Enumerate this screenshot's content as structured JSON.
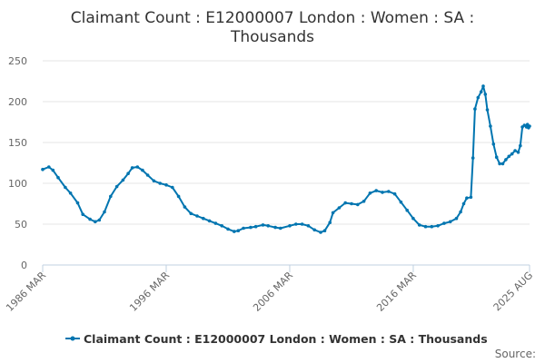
{
  "chart_data": {
    "type": "line",
    "title": "Claimant Count : E12000007 London : Women : SA :",
    "subtitle": "Thousands",
    "xlabel": "",
    "ylabel": "",
    "ylim": [
      0,
      250
    ],
    "yticks": [
      0,
      50,
      100,
      150,
      200,
      250
    ],
    "xrange": [
      "1986-03",
      "2025-08"
    ],
    "xticks": [
      {
        "date": "1986-03",
        "label": "1986 MAR"
      },
      {
        "date": "1996-03",
        "label": "1996 MAR"
      },
      {
        "date": "2006-03",
        "label": "2006 MAR"
      },
      {
        "date": "2016-03",
        "label": "2016 MAR"
      },
      {
        "date": "2025-08",
        "label": "2025 AUG"
      }
    ],
    "grid": true,
    "legend_position": "bottom",
    "series": [
      {
        "name": "Claimant Count : E12000007 London : Women : SA : Thousands",
        "color": "#0075b0",
        "marker": "circle",
        "points": [
          [
            "1986-03",
            117
          ],
          [
            "1986-09",
            120
          ],
          [
            "1987-01",
            116
          ],
          [
            "1987-06",
            107
          ],
          [
            "1988-01",
            95
          ],
          [
            "1988-06",
            88
          ],
          [
            "1989-01",
            76
          ],
          [
            "1989-06",
            62
          ],
          [
            "1990-01",
            56
          ],
          [
            "1990-06",
            53
          ],
          [
            "1990-10",
            55
          ],
          [
            "1991-03",
            65
          ],
          [
            "1991-09",
            84
          ],
          [
            "1992-03",
            96
          ],
          [
            "1992-09",
            104
          ],
          [
            "1993-02",
            112
          ],
          [
            "1993-06",
            119
          ],
          [
            "1993-11",
            120
          ],
          [
            "1994-04",
            116
          ],
          [
            "1994-09",
            110
          ],
          [
            "1995-03",
            103
          ],
          [
            "1995-09",
            100
          ],
          [
            "1996-03",
            98
          ],
          [
            "1996-09",
            95
          ],
          [
            "1997-03",
            84
          ],
          [
            "1997-09",
            71
          ],
          [
            "1998-03",
            63
          ],
          [
            "1998-09",
            60
          ],
          [
            "1999-03",
            57
          ],
          [
            "1999-09",
            54
          ],
          [
            "2000-03",
            51
          ],
          [
            "2000-09",
            48
          ],
          [
            "2001-03",
            44
          ],
          [
            "2001-09",
            41
          ],
          [
            "2002-01",
            42
          ],
          [
            "2002-06",
            45
          ],
          [
            "2003-01",
            46
          ],
          [
            "2003-06",
            47
          ],
          [
            "2004-01",
            49
          ],
          [
            "2004-06",
            48
          ],
          [
            "2005-01",
            46
          ],
          [
            "2005-06",
            45
          ],
          [
            "2006-03",
            48
          ],
          [
            "2006-09",
            50
          ],
          [
            "2007-03",
            50
          ],
          [
            "2007-09",
            48
          ],
          [
            "2008-03",
            43
          ],
          [
            "2008-09",
            40
          ],
          [
            "2009-01",
            42
          ],
          [
            "2009-06",
            52
          ],
          [
            "2009-09",
            64
          ],
          [
            "2010-03",
            70
          ],
          [
            "2010-09",
            76
          ],
          [
            "2011-03",
            75
          ],
          [
            "2011-09",
            74
          ],
          [
            "2012-03",
            78
          ],
          [
            "2012-09",
            88
          ],
          [
            "2013-03",
            91
          ],
          [
            "2013-09",
            89
          ],
          [
            "2014-03",
            90
          ],
          [
            "2014-09",
            87
          ],
          [
            "2015-03",
            77
          ],
          [
            "2015-09",
            67
          ],
          [
            "2016-03",
            57
          ],
          [
            "2016-09",
            49
          ],
          [
            "2017-03",
            47
          ],
          [
            "2017-09",
            47
          ],
          [
            "2018-03",
            48
          ],
          [
            "2018-09",
            51
          ],
          [
            "2019-03",
            53
          ],
          [
            "2019-09",
            57
          ],
          [
            "2020-01",
            65
          ],
          [
            "2020-04",
            75
          ],
          [
            "2020-07",
            82
          ],
          [
            "2020-11",
            83
          ],
          [
            "2021-01",
            131
          ],
          [
            "2021-03",
            191
          ],
          [
            "2021-06",
            205
          ],
          [
            "2021-09",
            212
          ],
          [
            "2021-11",
            219
          ],
          [
            "2022-01",
            209
          ],
          [
            "2022-03",
            190
          ],
          [
            "2022-06",
            170
          ],
          [
            "2022-09",
            148
          ],
          [
            "2022-12",
            132
          ],
          [
            "2023-03",
            124
          ],
          [
            "2023-06",
            124
          ],
          [
            "2023-09",
            129
          ],
          [
            "2023-12",
            133
          ],
          [
            "2024-03",
            136
          ],
          [
            "2024-06",
            140
          ],
          [
            "2024-09",
            138
          ],
          [
            "2024-11",
            146
          ],
          [
            "2025-01",
            169
          ],
          [
            "2025-03",
            171
          ],
          [
            "2025-05",
            169
          ],
          [
            "2025-06",
            172
          ],
          [
            "2025-07",
            168
          ],
          [
            "2025-08",
            170
          ]
        ]
      }
    ],
    "source": "Source:"
  }
}
